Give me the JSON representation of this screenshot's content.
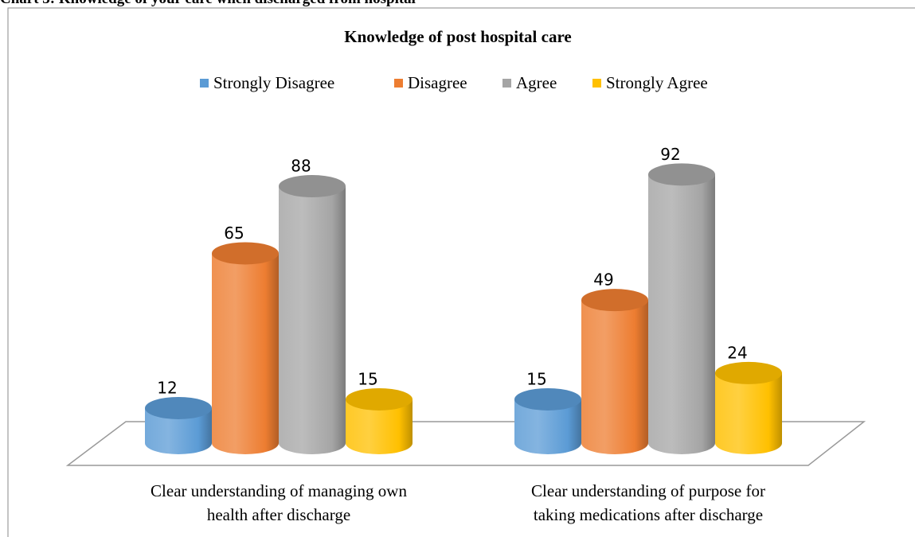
{
  "header": "Chart 3: Knowledge of your care when discharged from hospital",
  "chart_data": {
    "type": "bar3d",
    "title": "Knowledge of post hospital care",
    "categories": [
      "Clear understanding of managing own health after discharge",
      "Clear understanding of purpose for taking medications after discharge"
    ],
    "series": [
      {
        "name": "Strongly Disagree",
        "color": "#5b9bd5",
        "values": [
          12,
          15
        ]
      },
      {
        "name": "Disagree",
        "color": "#ed7d31",
        "values": [
          65,
          49
        ]
      },
      {
        "name": "Agree",
        "color": "#a5a5a5",
        "values": [
          88,
          92
        ]
      },
      {
        "name": "Strongly Agree",
        "color": "#ffc000",
        "values": [
          15,
          24
        ]
      }
    ]
  }
}
